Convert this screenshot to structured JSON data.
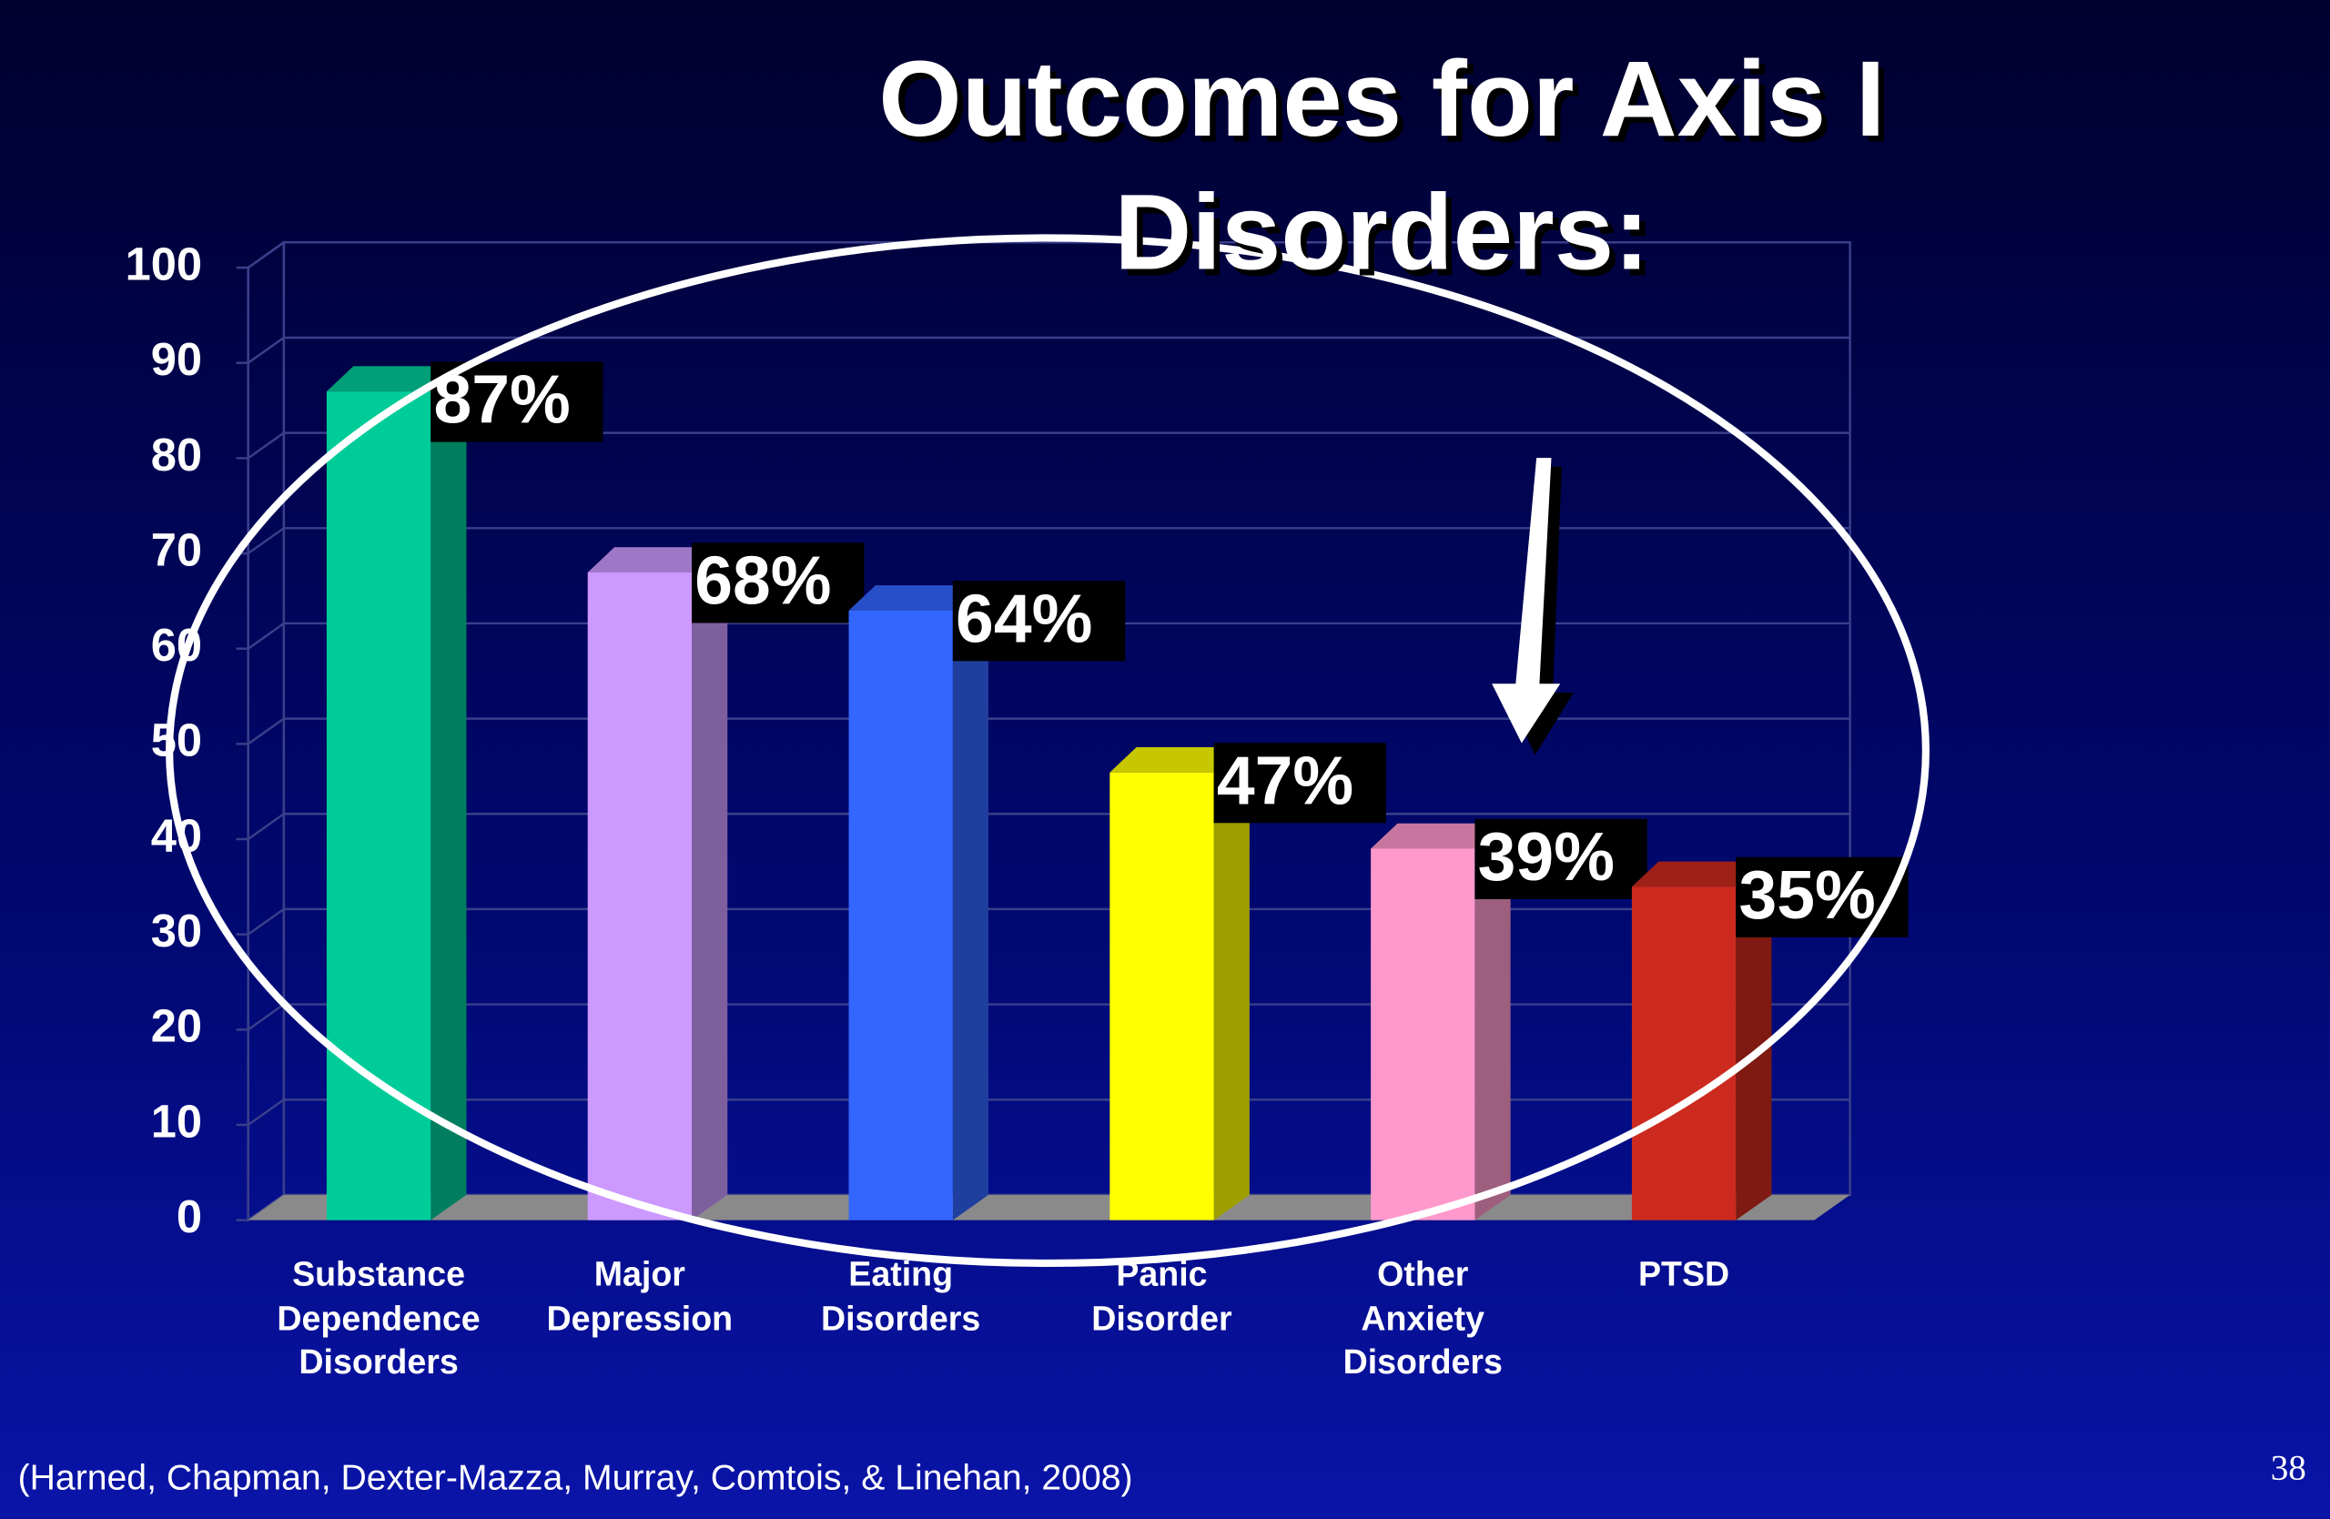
{
  "chart_data": {
    "type": "bar3d",
    "title": "Outcomes for Axis I\nDisorders:",
    "categories": [
      "Substance\nDependence\nDisorders",
      "Major\nDepression",
      "Eating\nDisorders",
      "Panic\nDisorder",
      "Other\nAnxiety\nDisorders",
      "PTSD"
    ],
    "values": [
      87,
      68,
      64,
      47,
      39,
      35
    ],
    "value_labels": [
      "87%",
      "68%",
      "64%",
      "47%",
      "39%",
      "35%"
    ],
    "colors": [
      "#00cc99",
      "#cc99ff",
      "#3366ff",
      "#ffff00",
      "#ff99cc",
      "#cc2a1e"
    ],
    "ylim": [
      0,
      100
    ],
    "yticks": [
      0,
      10,
      20,
      30,
      40,
      50,
      60,
      70,
      80,
      90,
      100
    ],
    "grid": true,
    "source": "(Harned, Chapman, Dexter-Mazza, Murray, Comtois, & Linehan, 2008)",
    "page_number": "38"
  }
}
